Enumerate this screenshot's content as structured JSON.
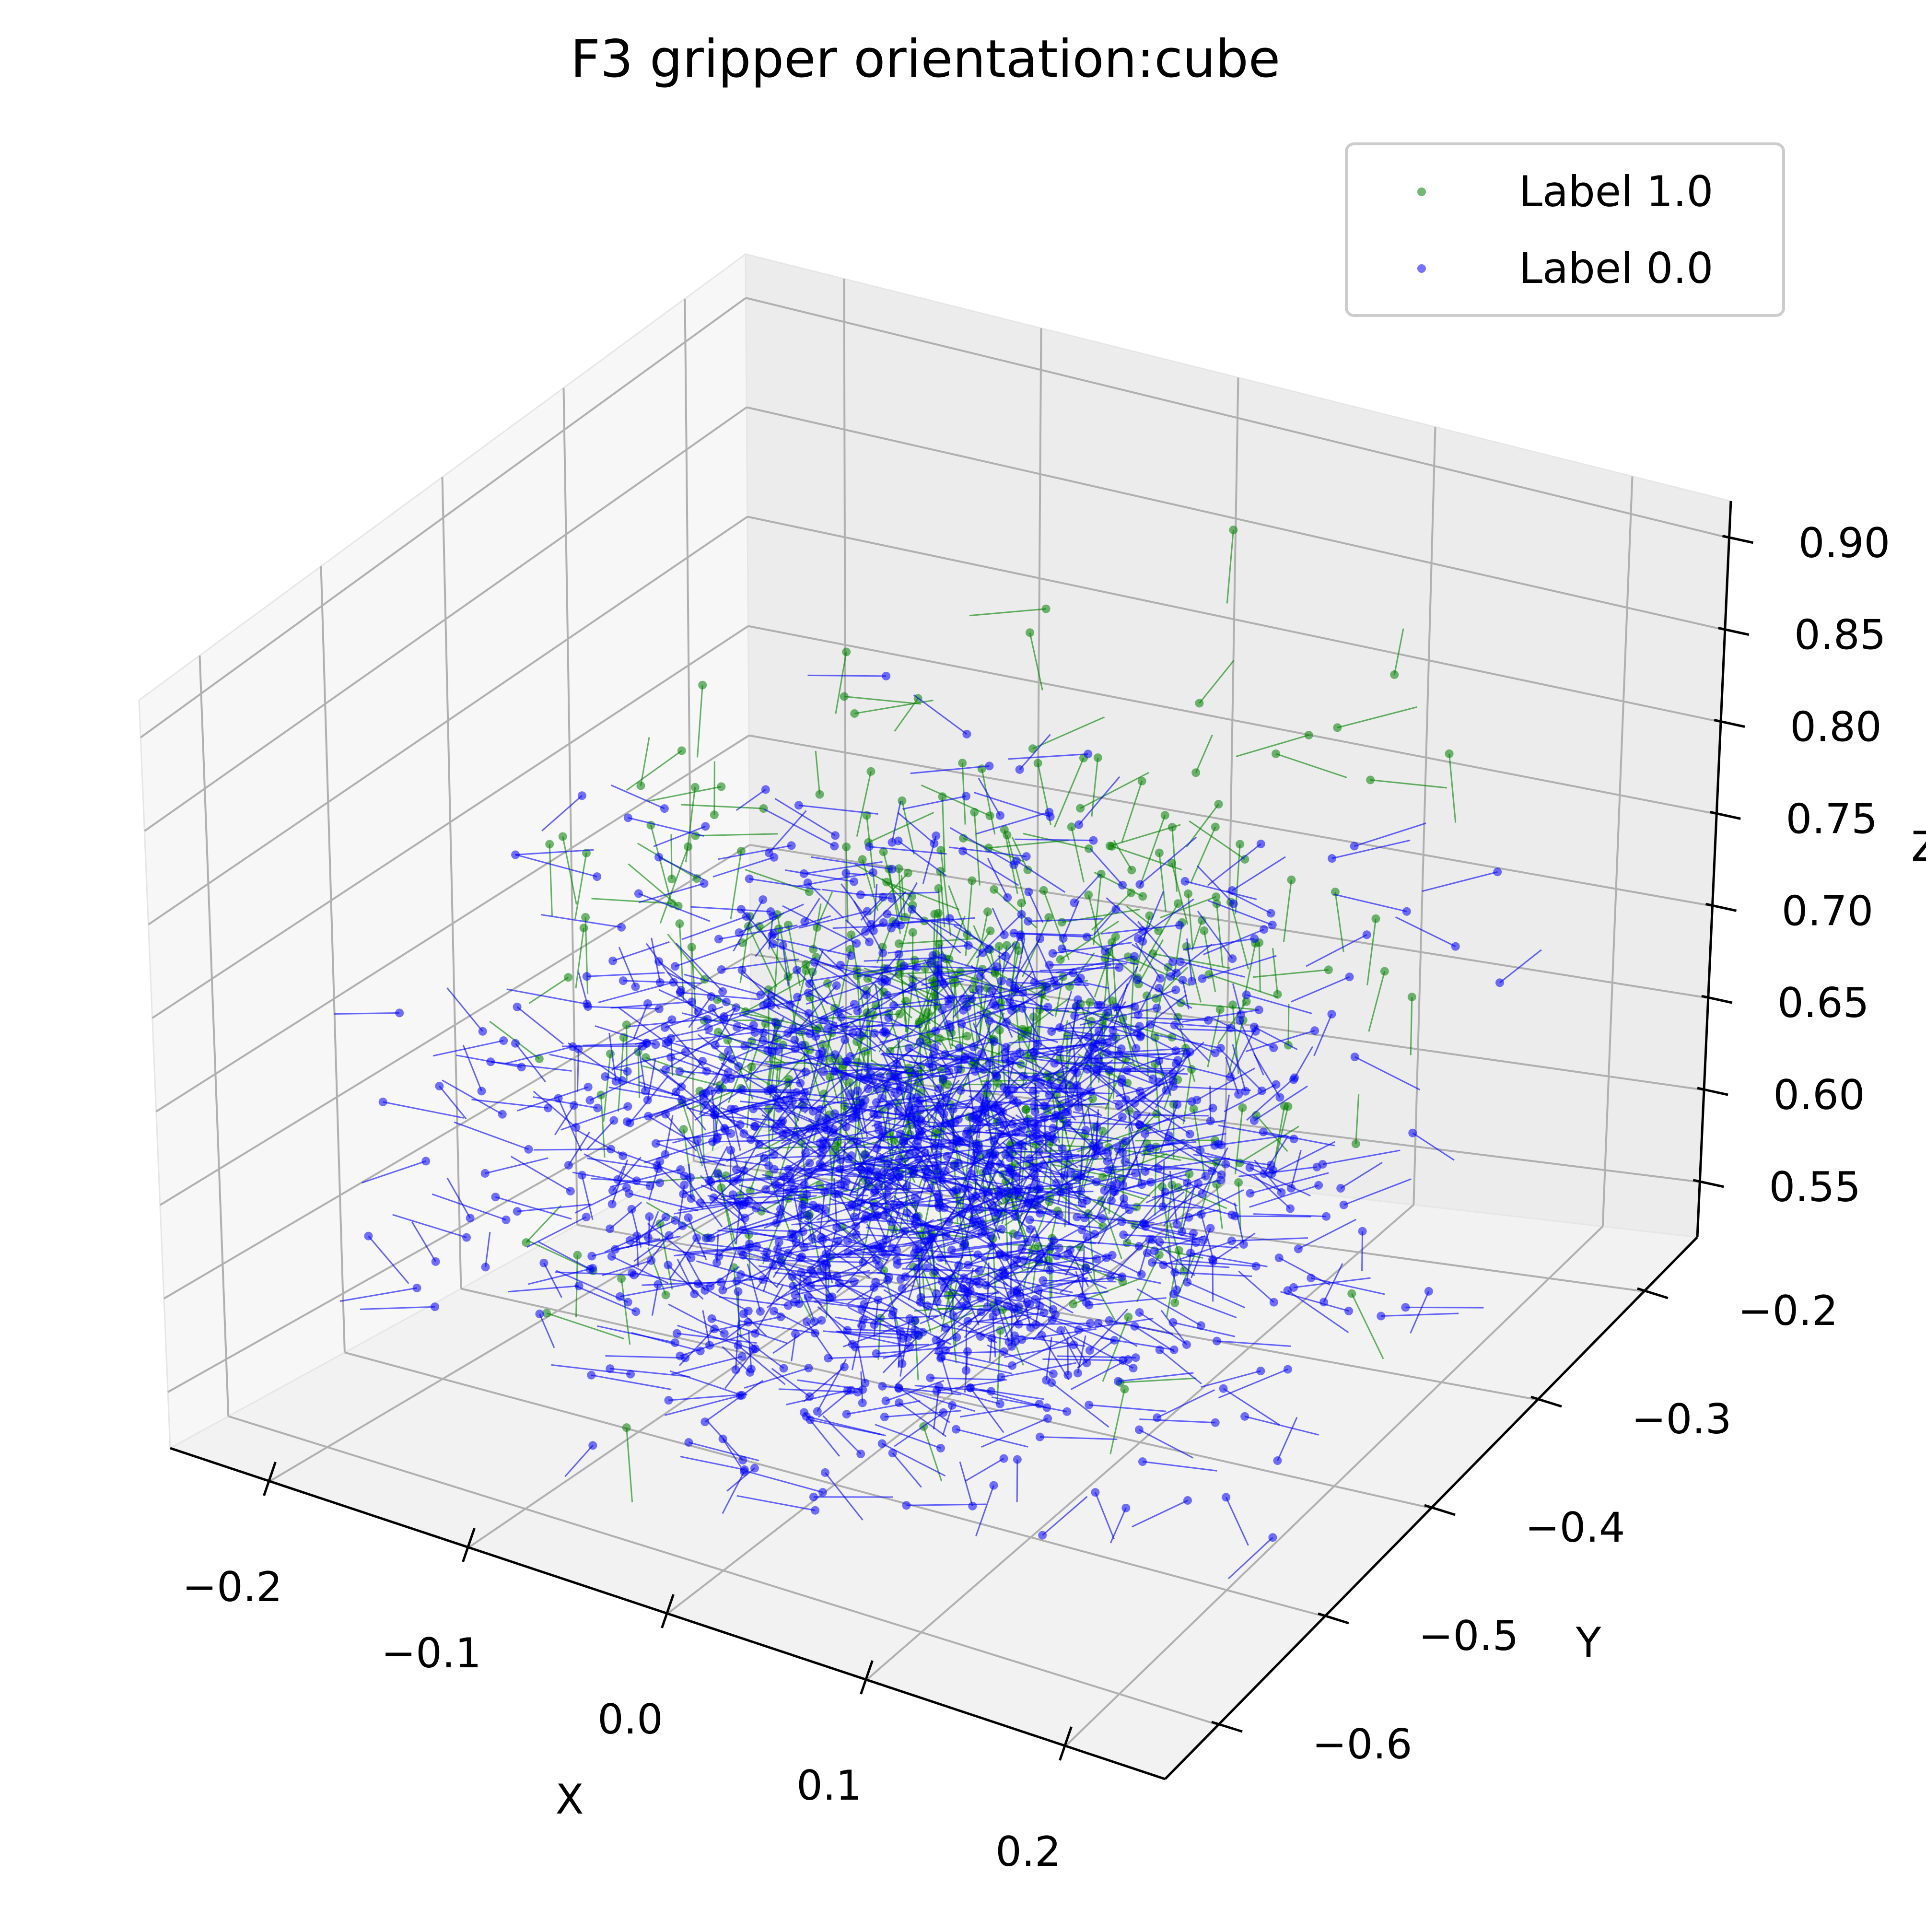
{
  "chart_data": {
    "type": "scatter3d",
    "title": "F3 gripper orientation:cube",
    "xlabel": "X",
    "ylabel": "Y",
    "zlabel": "Z",
    "xlim": [
      -0.25,
      0.25
    ],
    "ylim": [
      -0.65,
      -0.15
    ],
    "zlim": [
      0.52,
      0.92
    ],
    "x_ticks": [
      {
        "value": -0.2,
        "label": "−0.2"
      },
      {
        "value": -0.1,
        "label": "−0.1"
      },
      {
        "value": 0.0,
        "label": "0.0"
      },
      {
        "value": 0.1,
        "label": "0.1"
      },
      {
        "value": 0.2,
        "label": "0.2"
      }
    ],
    "y_ticks": [
      {
        "value": -0.6,
        "label": "−0.6"
      },
      {
        "value": -0.5,
        "label": "−0.5"
      },
      {
        "value": -0.4,
        "label": "−0.4"
      },
      {
        "value": -0.3,
        "label": "−0.3"
      },
      {
        "value": -0.2,
        "label": "−0.2"
      }
    ],
    "z_ticks": [
      {
        "value": 0.55,
        "label": "0.55"
      },
      {
        "value": 0.6,
        "label": "0.60"
      },
      {
        "value": 0.65,
        "label": "0.65"
      },
      {
        "value": 0.7,
        "label": "0.70"
      },
      {
        "value": 0.75,
        "label": "0.75"
      },
      {
        "value": 0.8,
        "label": "0.80"
      },
      {
        "value": 0.85,
        "label": "0.85"
      },
      {
        "value": 0.9,
        "label": "0.90"
      }
    ],
    "grid": true,
    "legend_position": "top-right",
    "series": [
      {
        "name": "Label 1.0",
        "color": "#008000",
        "opacity": 0.55,
        "distribution": {
          "center": [
            0.02,
            -0.42,
            0.73
          ],
          "spread": [
            0.075,
            0.075,
            0.06
          ]
        },
        "count": 520,
        "dominant_direction": "down-z"
      },
      {
        "name": "Label 0.0",
        "color": "#0000ff",
        "opacity": 0.55,
        "distribution": {
          "center": [
            0.0,
            -0.42,
            0.66
          ],
          "spread": [
            0.08,
            0.08,
            0.055
          ]
        },
        "count": 1450,
        "dominant_direction": "horizontal"
      }
    ]
  }
}
